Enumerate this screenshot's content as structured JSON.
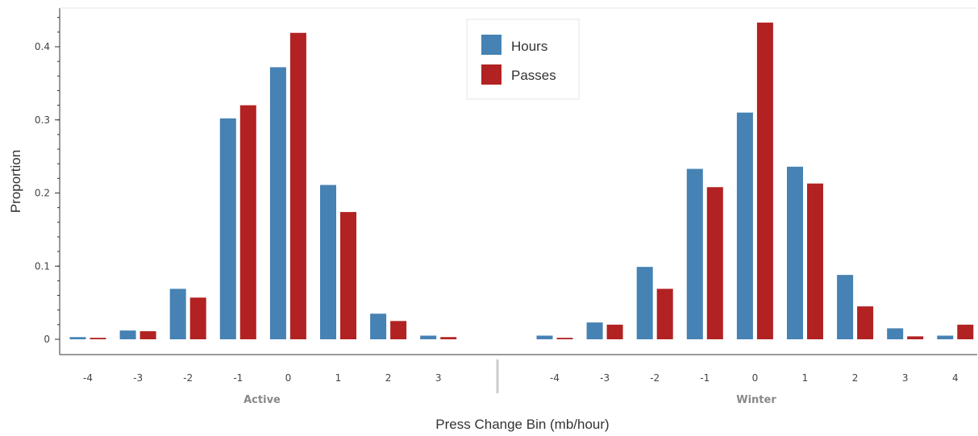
{
  "chart_data": {
    "type": "bar",
    "xlabel": "Press Change Bin (mb/hour)",
    "ylabel": "Proportion",
    "ylim": [
      0,
      0.45
    ],
    "yticks": [
      "0",
      "0.1",
      "0.2",
      "0.3",
      "0.4"
    ],
    "groups": [
      {
        "label": "Active",
        "categories": [
          "-4",
          "-3",
          "-2",
          "-1",
          "0",
          "1",
          "2",
          "3"
        ],
        "hours": [
          0.003,
          0.012,
          0.069,
          0.302,
          0.372,
          0.211,
          0.035,
          0.005
        ],
        "passes": [
          0.002,
          0.011,
          0.057,
          0.32,
          0.419,
          0.174,
          0.025,
          0.003
        ]
      },
      {
        "label": "Winter",
        "categories": [
          "-4",
          "-3",
          "-2",
          "-1",
          "0",
          "1",
          "2",
          "3",
          "4"
        ],
        "hours": [
          0.005,
          0.023,
          0.099,
          0.233,
          0.31,
          0.236,
          0.088,
          0.015,
          0.005
        ],
        "passes": [
          0.002,
          0.02,
          0.069,
          0.208,
          0.433,
          0.213,
          0.045,
          0.004,
          0.02
        ]
      }
    ],
    "series": [
      {
        "name": "Hours",
        "color": "#4682b4"
      },
      {
        "name": "Passes",
        "color": "#b22222"
      }
    ],
    "legend": "top-center",
    "grid": false
  }
}
